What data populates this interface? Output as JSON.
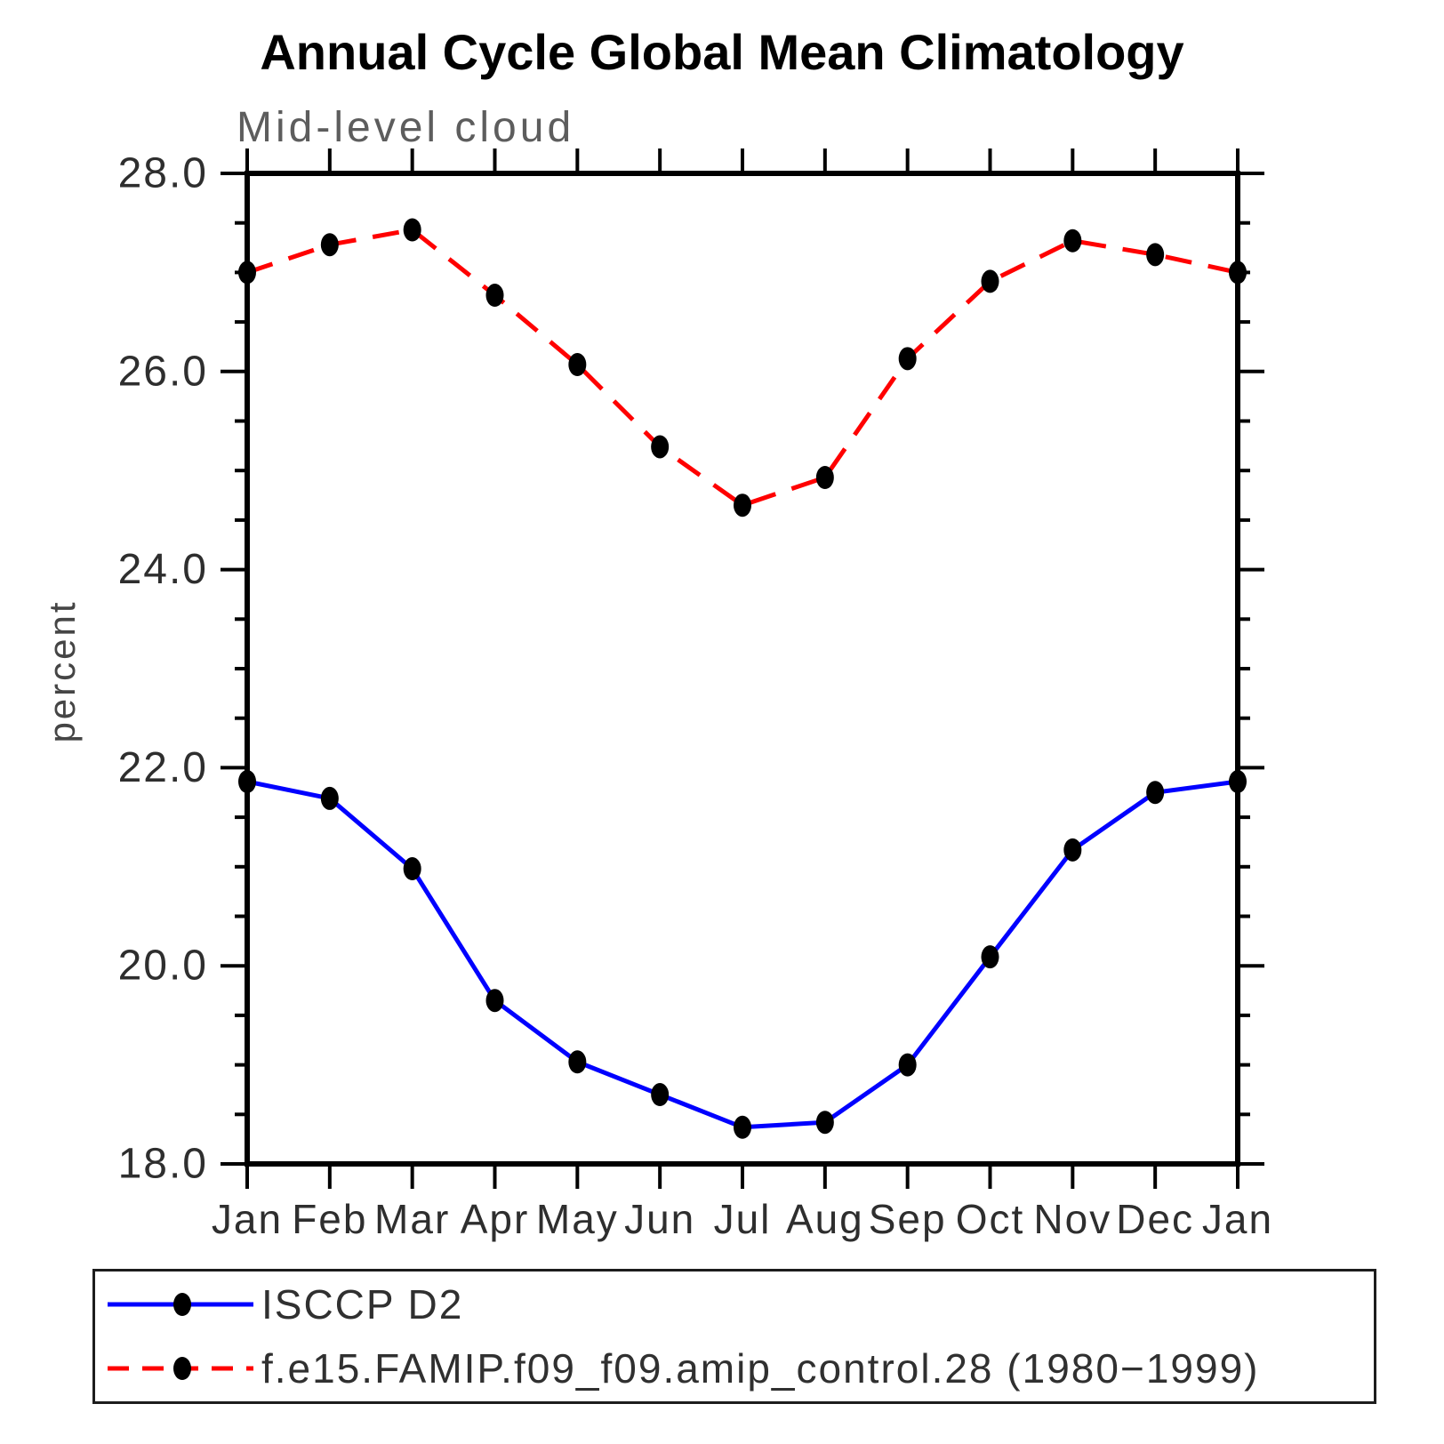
{
  "chart_data": {
    "type": "line",
    "title": "Annual Cycle Global Mean Climatology",
    "subtitle": "Mid-level cloud",
    "ylabel": "percent",
    "x_categories": [
      "Jan",
      "Feb",
      "Mar",
      "Apr",
      "May",
      "Jun",
      "Jul",
      "Aug",
      "Sep",
      "Oct",
      "Nov",
      "Dec",
      "Jan"
    ],
    "ylim": [
      18.0,
      28.0
    ],
    "ytick_major_step": 2.0,
    "ytick_minor_step": 0.5,
    "ytick_labels": [
      "18.0",
      "20.0",
      "22.0",
      "24.0",
      "26.0",
      "28.0"
    ],
    "grid": false,
    "legend_position": "bottom",
    "series": [
      {
        "name": "ISCCP D2",
        "color": "#0000ff",
        "line_style": "solid",
        "marker": "filled-black-ellipse",
        "values": [
          21.86,
          21.69,
          20.98,
          19.65,
          19.03,
          18.7,
          18.37,
          18.42,
          19.0,
          20.09,
          21.17,
          21.75,
          21.86
        ]
      },
      {
        "name": "f.e15.FAMIP.f09_f09.amip_control.28 (1980−1999)",
        "color": "#ff0000",
        "line_style": "dashed",
        "marker": "filled-black-ellipse",
        "values": [
          27.0,
          27.28,
          27.43,
          26.77,
          26.07,
          25.24,
          24.65,
          24.93,
          26.13,
          26.91,
          27.32,
          27.18,
          27.0
        ]
      }
    ],
    "legend": {
      "entries": [
        {
          "label": "ISCCP D2"
        },
        {
          "label": "f.e15.FAMIP.f09_f09.amip_control.28 (1980−1999)"
        }
      ]
    }
  }
}
